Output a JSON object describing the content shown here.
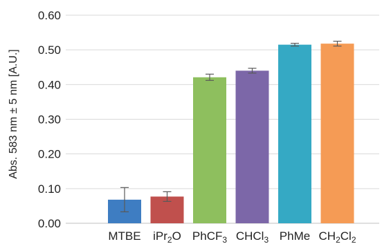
{
  "chart_data": {
    "type": "bar",
    "title": "",
    "xlabel": "",
    "ylabel": "Abs. 583 nm ± 5 nm [A.U.]",
    "ylim": [
      0,
      0.6
    ],
    "yticks": [
      "0.00",
      "0.10",
      "0.20",
      "0.30",
      "0.40",
      "0.50",
      "0.60"
    ],
    "grid": true,
    "legend": "none",
    "categories": [
      {
        "main": "MTBE",
        "sub": "",
        "tail": ""
      },
      {
        "main": "iPr",
        "sub": "2",
        "tail": "O"
      },
      {
        "main": "PhCF",
        "sub": "3",
        "tail": ""
      },
      {
        "main": "CHCl",
        "sub": "3",
        "tail": ""
      },
      {
        "main": "PhMe",
        "sub": "",
        "tail": ""
      },
      {
        "main": "CH",
        "sub": "2",
        "tail": "Cl",
        "sub2": "2"
      }
    ],
    "values": [
      0.068,
      0.077,
      0.421,
      0.44,
      0.515,
      0.518
    ],
    "errors": [
      0.035,
      0.014,
      0.009,
      0.007,
      0.004,
      0.007
    ],
    "colors": [
      "#3E7DC2",
      "#C0504D",
      "#8EBF5E",
      "#7C67A8",
      "#35A9C4",
      "#F59B55"
    ]
  }
}
